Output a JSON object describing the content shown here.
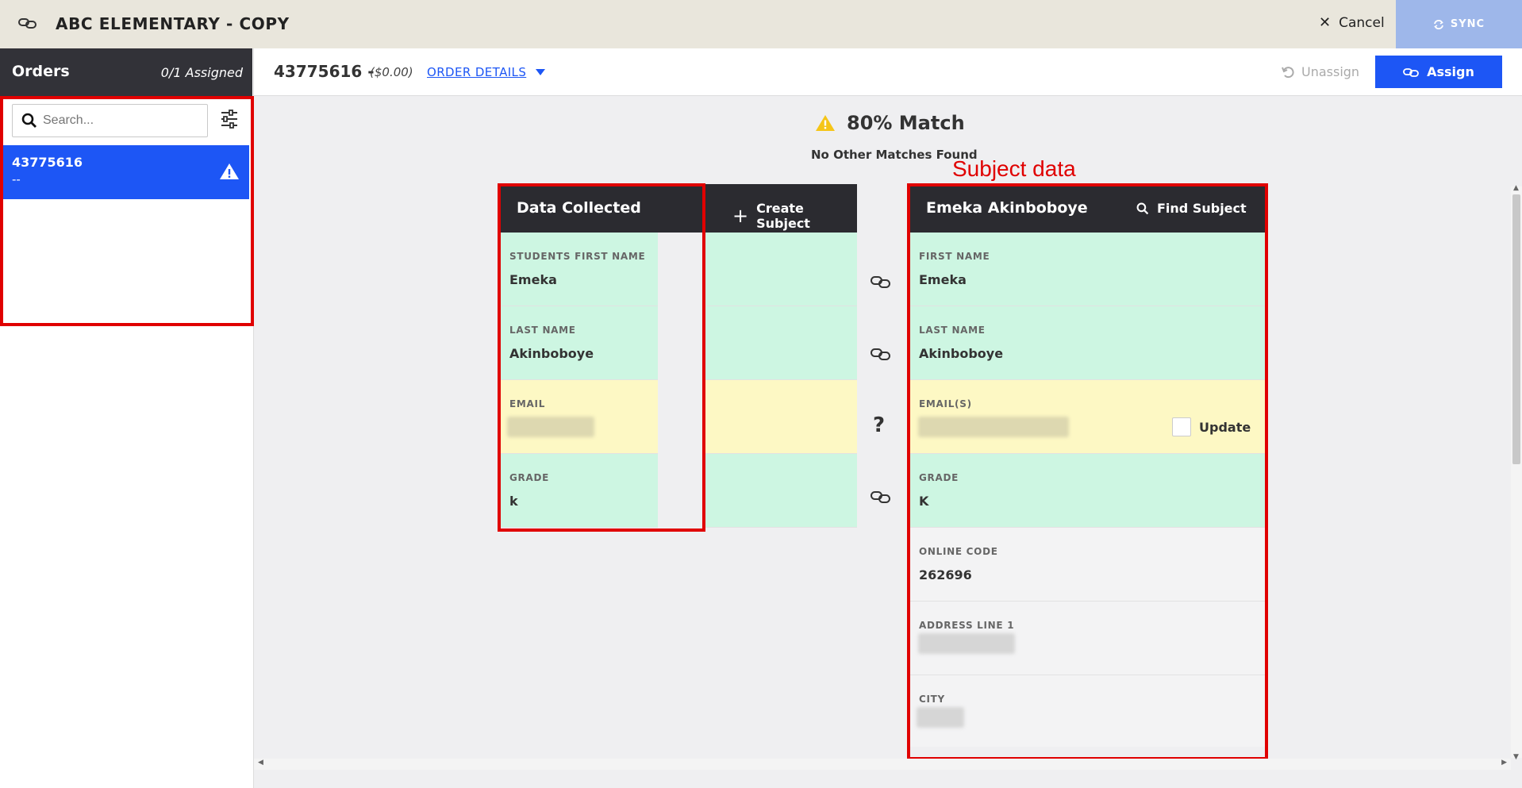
{
  "topbar": {
    "title": "ABC ELEMENTARY - COPY",
    "cancel_label": "Cancel",
    "sync_label": "SYNC"
  },
  "orders": {
    "title": "Orders",
    "assigned": "0/1 Assigned",
    "search_placeholder": "Search...",
    "items": [
      {
        "id": "43775616",
        "sub": "--"
      }
    ]
  },
  "header": {
    "order_id": "43775616 -",
    "price": "($0.00)",
    "details_label": "ORDER DETAILS",
    "unassign_label": "Unassign",
    "assign_label": "Assign"
  },
  "match": {
    "percent": "80% Match",
    "note": "No Other Matches Found"
  },
  "data_collected": {
    "title": "Data Collected",
    "create_label": "Create Subject",
    "fields": [
      {
        "label": "STUDENTS FIRST NAME",
        "value": "Emeka",
        "status": "match"
      },
      {
        "label": "LAST NAME",
        "value": "Akinboboye",
        "status": "match"
      },
      {
        "label": "EMAIL",
        "value": "",
        "status": "unsure"
      },
      {
        "label": "GRADE",
        "value": "k",
        "status": "match"
      }
    ]
  },
  "subject": {
    "name": "Emeka Akinboboye",
    "find_label": "Find Subject",
    "update_label": "Update",
    "fields": [
      {
        "label": "FIRST NAME",
        "value": "Emeka",
        "status": "match"
      },
      {
        "label": "LAST NAME",
        "value": "Akinboboye",
        "status": "match"
      },
      {
        "label": "EMAIL(S)",
        "value": "",
        "status": "unsure"
      },
      {
        "label": "GRADE",
        "value": "K",
        "status": "match"
      },
      {
        "label": "ONLINE CODE",
        "value": "262696",
        "status": "none"
      },
      {
        "label": "ADDRESS LINE 1",
        "value": "",
        "status": "none"
      },
      {
        "label": "CITY",
        "value": "",
        "status": "none"
      }
    ]
  },
  "annotation": "Subject data",
  "colors": {
    "accent": "#1d56f5",
    "match_bg": "#cdf6e2",
    "unsure_bg": "#fdf8c4",
    "highlight": "#e00000"
  }
}
